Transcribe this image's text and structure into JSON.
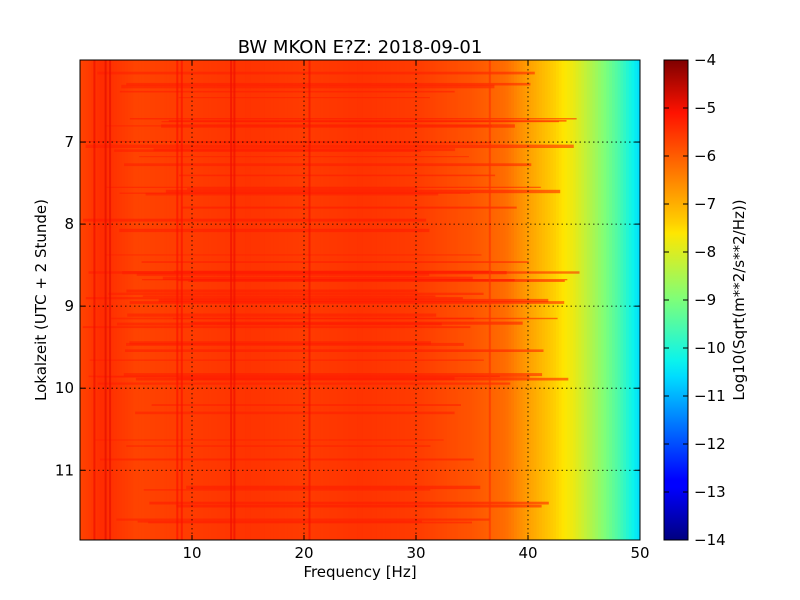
{
  "chart_data": {
    "type": "heatmap",
    "title": "BW MKON E?Z: 2018-09-01",
    "xlabel": "Frequency [Hz]",
    "ylabel": "Lokalzeit (UTC + 2 Stunde)",
    "xlim": [
      0,
      50
    ],
    "ylim": [
      6.0,
      11.85
    ],
    "y_inverted": true,
    "x_ticks": [
      10,
      20,
      30,
      40,
      50
    ],
    "y_ticks": [
      7,
      8,
      9,
      10,
      11
    ],
    "grid": true,
    "colormap": "jet",
    "colorbar": {
      "label": "Log10(Sqrt(m**2/s**2/Hz))",
      "range": [
        -14,
        -4
      ],
      "ticks": [
        -4,
        -5,
        -6,
        -7,
        -8,
        -9,
        -10,
        -11,
        -12,
        -13,
        -14
      ]
    },
    "spectrum_profile": {
      "frequency_hz": [
        0,
        2,
        5,
        10,
        15,
        20,
        25,
        30,
        35,
        38,
        40,
        42,
        44,
        46,
        48,
        50
      ],
      "level": [
        -5.7,
        -5.4,
        -5.7,
        -5.6,
        -5.5,
        -5.6,
        -5.5,
        -5.6,
        -5.9,
        -6.2,
        -6.8,
        -7.3,
        -7.8,
        -8.6,
        -9.5,
        -10.6
      ]
    }
  }
}
